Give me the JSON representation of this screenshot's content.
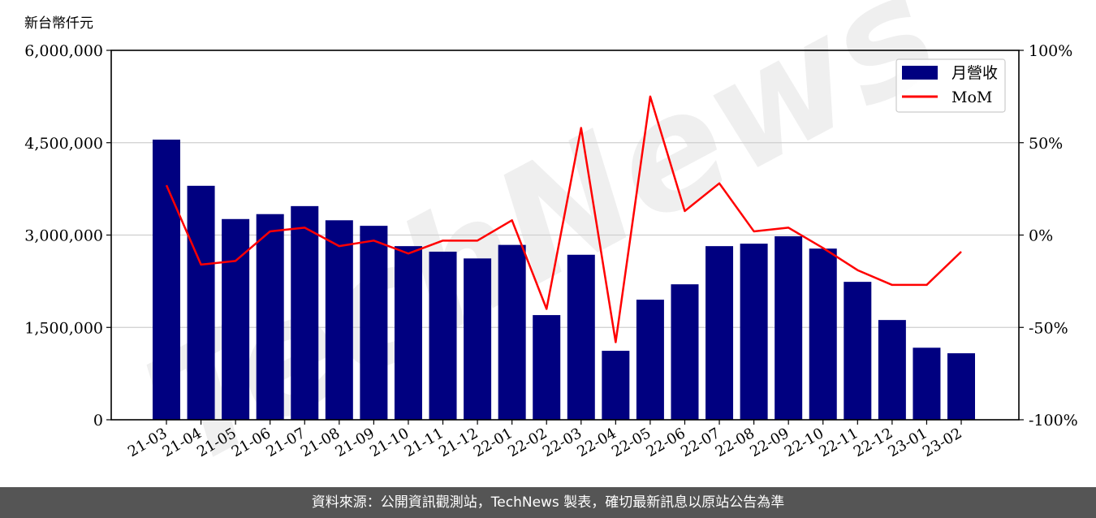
{
  "chart_data": {
    "type": "bar+line",
    "ylabel": "新台幣仟元",
    "categories": [
      "21-03",
      "21-04",
      "21-05",
      "21-06",
      "21-07",
      "21-08",
      "21-09",
      "21-10",
      "21-11",
      "21-12",
      "22-01",
      "22-02",
      "22-03",
      "22-04",
      "22-05",
      "22-06",
      "22-07",
      "22-08",
      "22-09",
      "22-10",
      "22-11",
      "22-12",
      "23-01",
      "23-02"
    ],
    "series": [
      {
        "name": "月營收",
        "type": "bar",
        "axis": "left",
        "color": "#000080",
        "values": [
          4550000,
          3800000,
          3260000,
          3340000,
          3470000,
          3240000,
          3150000,
          2820000,
          2730000,
          2620000,
          2840000,
          1700000,
          2680000,
          1120000,
          1950000,
          2200000,
          2820000,
          2860000,
          2980000,
          2780000,
          2240000,
          1620000,
          1170000,
          1080000
        ]
      },
      {
        "name": "MoM",
        "type": "line",
        "axis": "right",
        "color": "#ff0000",
        "values": [
          27,
          -16,
          -14,
          2,
          4,
          -6,
          -3,
          -10,
          -3,
          -3,
          8,
          -40,
          58,
          -58,
          75,
          13,
          28,
          2,
          4,
          -7,
          -19,
          -27,
          -27,
          -9
        ]
      }
    ],
    "left_axis": {
      "ylim": [
        0,
        6000000
      ],
      "ticks": [
        0,
        1500000,
        3000000,
        4500000,
        6000000
      ],
      "tick_labels": [
        "0",
        "1,500,000",
        "3,000,000",
        "4,500,000",
        "6,000,000"
      ]
    },
    "right_axis": {
      "ylim": [
        -100,
        100
      ],
      "ticks": [
        -100,
        -50,
        0,
        50,
        100
      ],
      "tick_labels": [
        "-100%",
        "-50%",
        "0%",
        "50%",
        "100%"
      ]
    },
    "grid": "horizontal",
    "legend": {
      "placement": "top-right",
      "entries": [
        "月營收",
        "MoM"
      ]
    },
    "watermark": "TechNews"
  },
  "footer": "資料來源：公開資訊觀測站，TechNews 製表，確切最新訊息以原站公告為準"
}
